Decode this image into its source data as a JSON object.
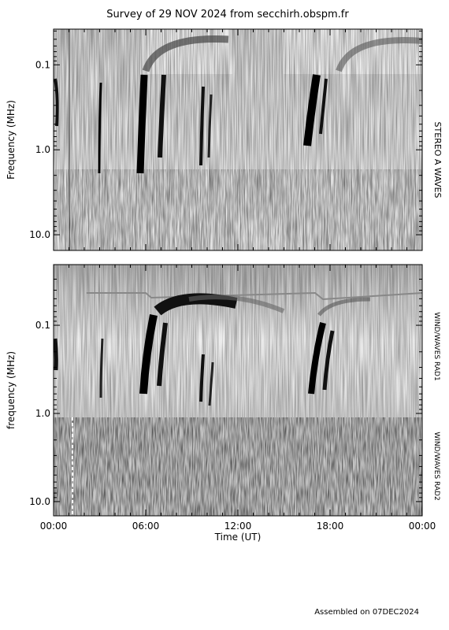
{
  "title": "Survey of 29 NOV 2024 from secchirh.obspm.fr",
  "footer": "Assembled on 07DEC2024",
  "chart_data": [
    {
      "type": "spectrogram",
      "ylabel": "Frequency (MHz)",
      "side_labels": [
        "STEREO A WAVES"
      ],
      "log_y": true,
      "y_inverted": true,
      "ylim": [
        0.038,
        15.3
      ],
      "yticks": [
        0.1,
        {
          "value": 1,
          "label": "1.0"
        },
        {
          "value": 10,
          "label": "10.0"
        }
      ],
      "xlim": [
        0,
        24
      ]
    },
    {
      "type": "spectrogram",
      "ylabel": "frequency (MHz)",
      "xlabel": "Time (UT)",
      "side_labels": [
        "WIND/WAVES RAD1",
        "WIND/WAVES RAD2"
      ],
      "log_y": true,
      "y_inverted": true,
      "ylim": [
        0.0205,
        14.5
      ],
      "yticks": [
        0.1,
        {
          "value": 1,
          "label": "1.0"
        },
        {
          "value": 10,
          "label": "10.0"
        }
      ],
      "xlim": [
        0,
        24
      ],
      "xticks": [
        {
          "value": 0,
          "label": "00:00"
        },
        {
          "value": 6,
          "label": "06:00"
        },
        {
          "value": 12,
          "label": "12:00"
        },
        {
          "value": 18,
          "label": "18:00"
        },
        {
          "value": 24,
          "label": "00:00"
        }
      ]
    }
  ]
}
